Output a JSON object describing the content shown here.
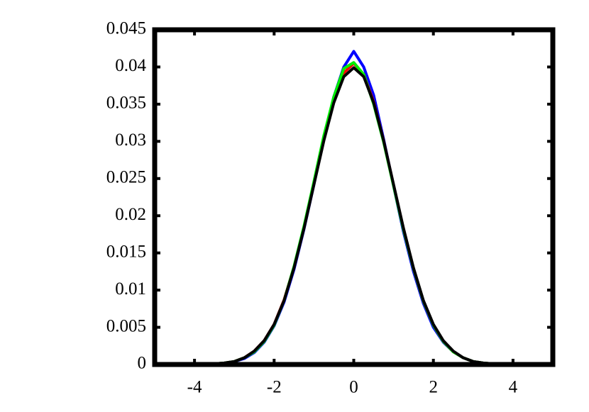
{
  "chart_data": {
    "type": "line",
    "x": [
      -3.5,
      -3.25,
      -3,
      -2.75,
      -2.5,
      -2.25,
      -2,
      -1.75,
      -1.5,
      -1.25,
      -1,
      -0.75,
      -0.5,
      -0.25,
      0,
      0.25,
      0.5,
      0.75,
      1,
      1.25,
      1.5,
      1.75,
      2,
      2.25,
      2.5,
      2.75,
      3,
      3.25,
      3.5
    ],
    "series": [
      {
        "color": "#0000ff",
        "values": [
          0.0001,
          0.0002,
          0.0004,
          0.0008,
          0.0016,
          0.003,
          0.0052,
          0.0084,
          0.0128,
          0.0182,
          0.0242,
          0.0304,
          0.036,
          0.04,
          0.0421,
          0.04,
          0.0362,
          0.0303,
          0.024,
          0.0178,
          0.0125,
          0.0082,
          0.005,
          0.003,
          0.0017,
          0.0009,
          0.0004,
          0.0002,
          0.0001
        ]
      },
      {
        "color": "#ff0000",
        "values": [
          0.0001,
          0.0002,
          0.0004,
          0.0009,
          0.0018,
          0.0032,
          0.0054,
          0.0087,
          0.0131,
          0.0184,
          0.0243,
          0.0303,
          0.0355,
          0.0392,
          0.0405,
          0.039,
          0.0353,
          0.0301,
          0.0241,
          0.0182,
          0.0129,
          0.0085,
          0.0053,
          0.0031,
          0.0017,
          0.0009,
          0.0004,
          0.0002,
          0.0001
        ]
      },
      {
        "color": "#00ee00",
        "values": [
          0.0001,
          0.0002,
          0.0004,
          0.0009,
          0.0017,
          0.0031,
          0.0053,
          0.0086,
          0.0132,
          0.0186,
          0.0246,
          0.0308,
          0.036,
          0.0398,
          0.0406,
          0.039,
          0.035,
          0.0299,
          0.024,
          0.0181,
          0.0129,
          0.0085,
          0.0053,
          0.0031,
          0.0017,
          0.0009,
          0.0004,
          0.0002,
          0.0001
        ]
      },
      {
        "color": "#000000",
        "values": [
          0.0001,
          0.0002,
          0.0004,
          0.0009,
          0.0018,
          0.0032,
          0.0054,
          0.0086,
          0.013,
          0.0183,
          0.0242,
          0.0301,
          0.0352,
          0.0387,
          0.0399,
          0.0387,
          0.0352,
          0.0301,
          0.0242,
          0.0183,
          0.013,
          0.0086,
          0.0054,
          0.0032,
          0.0018,
          0.0009,
          0.0004,
          0.0002,
          0.0001
        ]
      }
    ],
    "xlim": [
      -5,
      5
    ],
    "xticks": [
      -4,
      -2,
      0,
      2,
      4
    ],
    "ylim": [
      0,
      0.045
    ],
    "yticks": [
      0,
      0.005,
      0.01,
      0.015,
      0.02,
      0.025,
      0.03,
      0.035,
      0.04,
      0.045
    ],
    "mirror_ticks": true
  }
}
